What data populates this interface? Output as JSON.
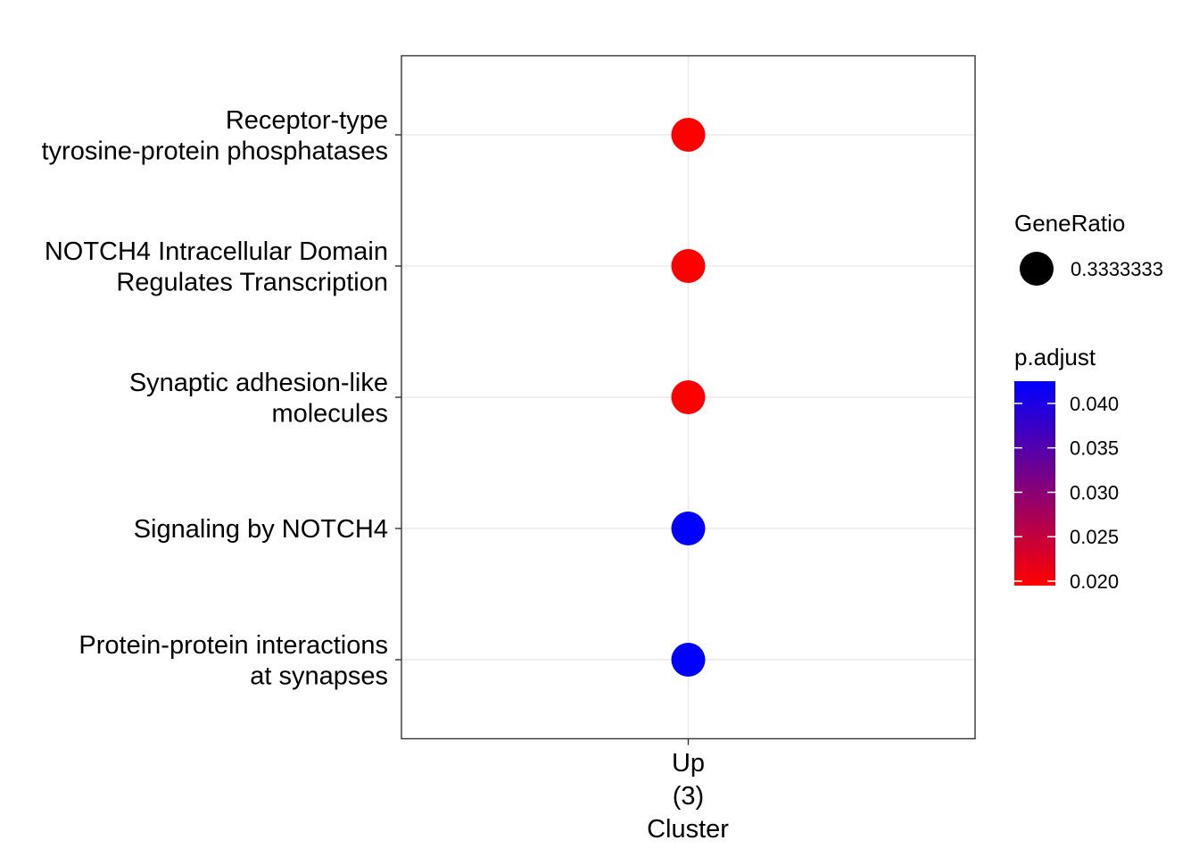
{
  "chart_data": {
    "type": "scatter",
    "title": "",
    "xlabel": "Cluster",
    "ylabel": "",
    "x_categories": [
      {
        "lines": [
          "Up",
          "(3)"
        ]
      }
    ],
    "y_categories": [
      {
        "lines": [
          "Receptor-type",
          "tyrosine-protein phosphatases"
        ]
      },
      {
        "lines": [
          "NOTCH4 Intracellular Domain",
          "Regulates Transcription"
        ]
      },
      {
        "lines": [
          "Synaptic adhesion-like",
          "molecules"
        ]
      },
      {
        "lines": [
          "Signaling by NOTCH4"
        ]
      },
      {
        "lines": [
          "Protein-protein interactions",
          "at synapses"
        ]
      }
    ],
    "points": [
      {
        "x": "Up\n(3)",
        "y": "Receptor-type tyrosine-protein phosphatases",
        "GeneRatio": 0.3333333,
        "p_adjust": 0.0195
      },
      {
        "x": "Up\n(3)",
        "y": "NOTCH4 Intracellular Domain Regulates Transcription",
        "GeneRatio": 0.3333333,
        "p_adjust": 0.0195
      },
      {
        "x": "Up\n(3)",
        "y": "Synaptic adhesion-like molecules",
        "GeneRatio": 0.3333333,
        "p_adjust": 0.0195
      },
      {
        "x": "Up\n(3)",
        "y": "Signaling by NOTCH4",
        "GeneRatio": 0.3333333,
        "p_adjust": 0.0425
      },
      {
        "x": "Up\n(3)",
        "y": "Protein-protein interactions at synapses",
        "GeneRatio": 0.3333333,
        "p_adjust": 0.0425
      }
    ],
    "size_legend": {
      "title": "GeneRatio",
      "entries": [
        {
          "label": "0.3333333",
          "value": 0.3333333
        }
      ]
    },
    "color_legend": {
      "title": "p.adjust",
      "range": [
        0.0195,
        0.0425
      ],
      "low_color": "#ff0000",
      "high_color": "#0000ff",
      "ticks": [
        {
          "label": "0.040",
          "value": 0.04
        },
        {
          "label": "0.035",
          "value": 0.035
        },
        {
          "label": "0.030",
          "value": 0.03
        },
        {
          "label": "0.025",
          "value": 0.025
        },
        {
          "label": "0.020",
          "value": 0.02
        }
      ]
    },
    "grid": true,
    "legend_position": "right"
  }
}
